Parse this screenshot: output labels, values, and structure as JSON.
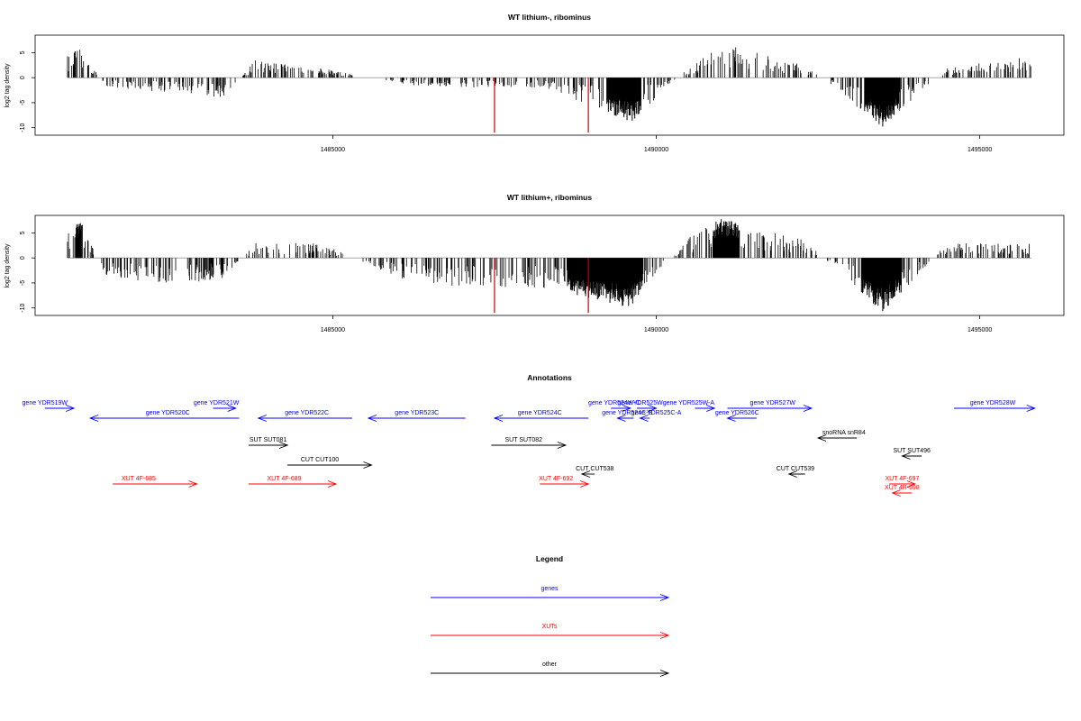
{
  "colors": {
    "gene": "#0000ff",
    "xut": "#ff0000",
    "other": "#000000",
    "highlight": "#cc0000",
    "bar": "#000000",
    "baseline": "#999999"
  },
  "chart_data": [
    {
      "type": "bar",
      "title": "WT lithium-, ribominus",
      "ylabel": "log2 tag density",
      "xlim": [
        1480400,
        1496300
      ],
      "ylim": [
        -11.5,
        8.5
      ],
      "xticks": [
        1485000,
        1490000,
        1495000
      ],
      "xtick_labels": [
        "1485000",
        "1490000",
        "1495000"
      ],
      "yticks": [
        5,
        0,
        -5,
        -10
      ],
      "ytick_labels": [
        "5",
        "0",
        "-5",
        "-10"
      ],
      "highlight_positions": [
        1487500,
        1488950
      ],
      "highlight_values": [
        -11,
        -11
      ],
      "series": [
        {
          "x": [
            1480000,
            1481100,
            1481500,
            1482000,
            1482500,
            1483000,
            1483300,
            1483800,
            1484800,
            1486200,
            1487200,
            1488300,
            1489600,
            1490500,
            1491000,
            1492300,
            1493500,
            1494500,
            1495600
          ],
          "y": [
            0,
            6,
            -2,
            -2.5,
            -3,
            -3.5,
            -4,
            3.5,
            2,
            -1.5,
            -2,
            -2,
            -9,
            2,
            7,
            2.5,
            -10,
            2,
            4
          ]
        }
      ]
    },
    {
      "type": "bar",
      "title": "WT lithium+, ribominus",
      "ylabel": "log2 tag density",
      "xlim": [
        1480400,
        1496300
      ],
      "ylim": [
        -11.5,
        8.5
      ],
      "xticks": [
        1485000,
        1490000,
        1495000
      ],
      "xtick_labels": [
        "1485000",
        "1490000",
        "1495000"
      ],
      "yticks": [
        5,
        0,
        -5,
        -10
      ],
      "ytick_labels": [
        "5",
        "0",
        "-5",
        "-10"
      ],
      "highlight_positions": [
        1487500,
        1488950
      ],
      "highlight_values": [
        -11,
        -11
      ],
      "series": [
        {
          "x": [
            1480000,
            1481100,
            1481500,
            1482000,
            1482500,
            1483000,
            1483300,
            1483800,
            1484800,
            1486200,
            1487200,
            1488300,
            1489600,
            1490500,
            1491000,
            1492300,
            1493500,
            1494500,
            1495600
          ],
          "y": [
            0,
            7.5,
            -4,
            -4.5,
            -5,
            -5,
            -4,
            3,
            3,
            -5,
            -6,
            -6,
            -10,
            4,
            8,
            3.5,
            -11,
            3,
            3
          ]
        }
      ]
    }
  ],
  "annotations": {
    "title": "Annotations",
    "items": [
      {
        "label": "gene YDR519W",
        "cat": "gene",
        "x1": 1480550,
        "x2": 1481000,
        "lx": 1480550,
        "dir": "right",
        "row": 0
      },
      {
        "label": "gene YDR520C",
        "cat": "gene",
        "x1": 1481250,
        "x2": 1483550,
        "lx": 1482450,
        "dir": "left",
        "row": 1
      },
      {
        "label": "gene YDR521W",
        "cat": "gene",
        "x1": 1483150,
        "x2": 1483500,
        "lx": 1483200,
        "dir": "right",
        "row": 0
      },
      {
        "label": "gene YDR522C",
        "cat": "gene",
        "x1": 1483850,
        "x2": 1485300,
        "lx": 1484600,
        "dir": "left",
        "row": 1
      },
      {
        "label": "gene YDR523C",
        "cat": "gene",
        "x1": 1485550,
        "x2": 1487050,
        "lx": 1486300,
        "dir": "left",
        "row": 1
      },
      {
        "label": "gene YDR524C",
        "cat": "gene",
        "x1": 1487500,
        "x2": 1488950,
        "lx": 1488200,
        "dir": "left",
        "row": 1
      },
      {
        "label": "gene YDR524W-C",
        "cat": "gene",
        "x1": 1489300,
        "x2": 1489600,
        "lx": 1489350,
        "dir": "right",
        "row": 0
      },
      {
        "label": "gene YDR524C-B",
        "cat": "gene",
        "x1": 1489400,
        "x2": 1489650,
        "lx": 1489550,
        "dir": "left",
        "row": 1
      },
      {
        "label": "gene YDR525W",
        "cat": "gene",
        "x1": 1489700,
        "x2": 1490000,
        "lx": 1489750,
        "dir": "right",
        "row": 0
      },
      {
        "label": "gene YDR525C-A",
        "cat": "gene",
        "x1": 1489750,
        "x2": 1489900,
        "lx": 1490000,
        "dir": "left",
        "row": 1
      },
      {
        "label": "gene YDR525W-A",
        "cat": "gene",
        "x1": 1490600,
        "x2": 1490900,
        "lx": 1490500,
        "dir": "right",
        "row": 0
      },
      {
        "label": "gene YDR526C",
        "cat": "gene",
        "x1": 1491100,
        "x2": 1491550,
        "lx": 1491250,
        "dir": "left",
        "row": 1
      },
      {
        "label": "gene YDR527W",
        "cat": "gene",
        "x1": 1491100,
        "x2": 1492400,
        "lx": 1491800,
        "dir": "right",
        "row": 0
      },
      {
        "label": "gene YDR528W",
        "cat": "gene",
        "x1": 1494600,
        "x2": 1495850,
        "lx": 1495200,
        "dir": "right",
        "row": 0
      },
      {
        "label": "SUT SUT081",
        "cat": "other",
        "x1": 1483700,
        "x2": 1484300,
        "lx": 1484000,
        "dir": "right",
        "row": 3
      },
      {
        "label": "SUT SUT082",
        "cat": "other",
        "x1": 1487450,
        "x2": 1488600,
        "lx": 1487950,
        "dir": "right",
        "row": 3
      },
      {
        "label": "snoRNA snR84",
        "cat": "other",
        "x1": 1492500,
        "x2": 1493100,
        "lx": 1492900,
        "dir": "left",
        "row": 2
      },
      {
        "label": "SUT SUT496",
        "cat": "other",
        "x1": 1493800,
        "x2": 1494100,
        "lx": 1493950,
        "dir": "left",
        "row": 4
      },
      {
        "label": "CUT CUT100",
        "cat": "other",
        "x1": 1484300,
        "x2": 1485600,
        "lx": 1484800,
        "dir": "right",
        "row": 5
      },
      {
        "label": "CUT CUT538",
        "cat": "other",
        "x1": 1488850,
        "x2": 1489050,
        "lx": 1489050,
        "dir": "left",
        "row": 6
      },
      {
        "label": "CUT CUT539",
        "cat": "other",
        "x1": 1492050,
        "x2": 1492300,
        "lx": 1492150,
        "dir": "left",
        "row": 6
      },
      {
        "label": "XUT 4F-685",
        "cat": "xut",
        "x1": 1481600,
        "x2": 1482900,
        "lx": 1482000,
        "dir": "right",
        "row": 7
      },
      {
        "label": "XUT 4F-689",
        "cat": "xut",
        "x1": 1483700,
        "x2": 1485050,
        "lx": 1484250,
        "dir": "right",
        "row": 7
      },
      {
        "label": "XUT 4F-692",
        "cat": "xut",
        "x1": 1488200,
        "x2": 1488950,
        "lx": 1488450,
        "dir": "right",
        "row": 7
      },
      {
        "label": "XUT 4F-697",
        "cat": "xut",
        "x1": 1493600,
        "x2": 1494000,
        "lx": 1493800,
        "dir": "right",
        "row": 7
      },
      {
        "label": "XUT 4R-698",
        "cat": "xut",
        "x1": 1493650,
        "x2": 1493950,
        "lx": 1493800,
        "dir": "left",
        "row": 8
      }
    ]
  },
  "legend": {
    "title": "Legend",
    "items": [
      {
        "label": "genes",
        "cat": "gene"
      },
      {
        "label": "XUTs",
        "cat": "xut"
      },
      {
        "label": "other",
        "cat": "other"
      }
    ]
  }
}
